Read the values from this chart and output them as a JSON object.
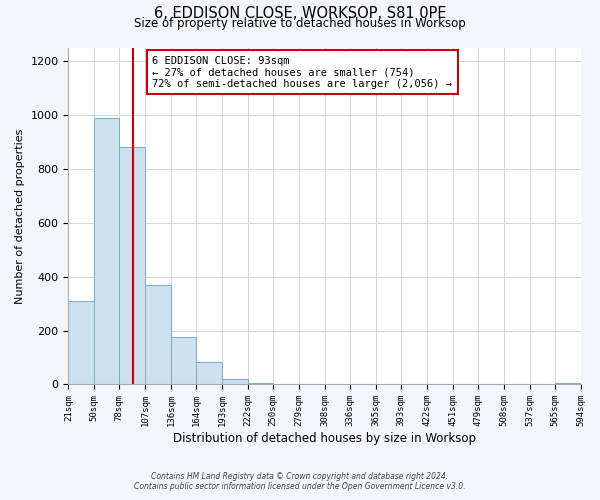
{
  "title": "6, EDDISON CLOSE, WORKSOP, S81 0PE",
  "subtitle": "Size of property relative to detached houses in Worksop",
  "xlabel": "Distribution of detached houses by size in Worksop",
  "ylabel": "Number of detached properties",
  "bin_edges": [
    21,
    50,
    78,
    107,
    136,
    164,
    193,
    222,
    250,
    279,
    308,
    336,
    365,
    393,
    422,
    451,
    479,
    508,
    537,
    565,
    594
  ],
  "bar_heights": [
    310,
    990,
    880,
    370,
    175,
    82,
    20,
    5,
    0,
    0,
    0,
    0,
    0,
    0,
    0,
    0,
    0,
    0,
    0,
    5
  ],
  "bar_color": "#cce0f0",
  "bar_edge_color": "#7aaac8",
  "property_size": 93,
  "vline_color": "#cc0000",
  "annotation_text": "6 EDDISON CLOSE: 93sqm\n← 27% of detached houses are smaller (754)\n72% of semi-detached houses are larger (2,056) →",
  "annotation_box_color": "#ffffff",
  "annotation_box_edge": "#cc0000",
  "ylim": [
    0,
    1250
  ],
  "yticks": [
    0,
    200,
    400,
    600,
    800,
    1000,
    1200
  ],
  "tick_labels": [
    "21sqm",
    "50sqm",
    "78sqm",
    "107sqm",
    "136sqm",
    "164sqm",
    "193sqm",
    "222sqm",
    "250sqm",
    "279sqm",
    "308sqm",
    "336sqm",
    "365sqm",
    "393sqm",
    "422sqm",
    "451sqm",
    "479sqm",
    "508sqm",
    "537sqm",
    "565sqm",
    "594sqm"
  ],
  "footer_line1": "Contains HM Land Registry data © Crown copyright and database right 2024.",
  "footer_line2": "Contains public sector information licensed under the Open Government Licence v3.0.",
  "bg_color": "#f2f6fa",
  "plot_bg_color": "#ffffff",
  "grid_color": "#d0d8e0"
}
